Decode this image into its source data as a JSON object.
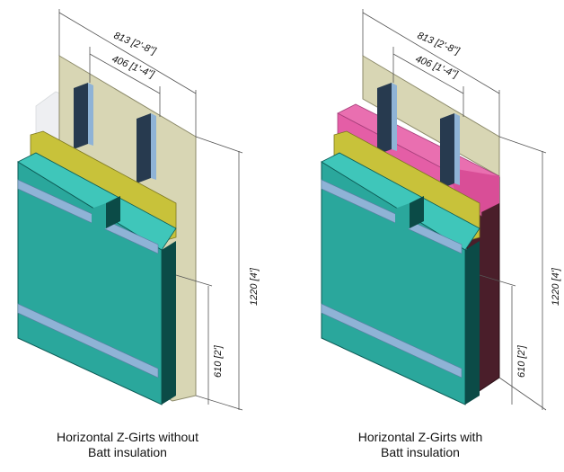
{
  "figures": [
    {
      "id": "without-batt",
      "caption_line1": "Horizontal Z-Girts without",
      "caption_line2": "Batt insulation",
      "dims": {
        "width_total": "813 [2'-8\"]",
        "girt_spacing": "406 [1'-4\"]",
        "height_total": "1220 [4']",
        "height_half": "610 [2']"
      },
      "batt_insulation": false
    },
    {
      "id": "with-batt",
      "caption_line1": "Horizontal Z-Girts with",
      "caption_line2": "Batt insulation",
      "dims": {
        "width_total": "813 [2'-8\"]",
        "girt_spacing": "406 [1'-4\"]",
        "height_total": "1220 [4']",
        "height_half": "610 [2']"
      },
      "batt_insulation": true
    }
  ],
  "colors": {
    "sheathing": "#d8d6b4",
    "girt_yellow": "#c8c23a",
    "panel_teal": "#2aa79c",
    "panel_dark": "#0b4b47",
    "stud_dark": "#273a4f",
    "stud_light": "#8fb3d6",
    "batt_pink": "#e96fb0",
    "back_maroon": "#4a1e2a"
  }
}
